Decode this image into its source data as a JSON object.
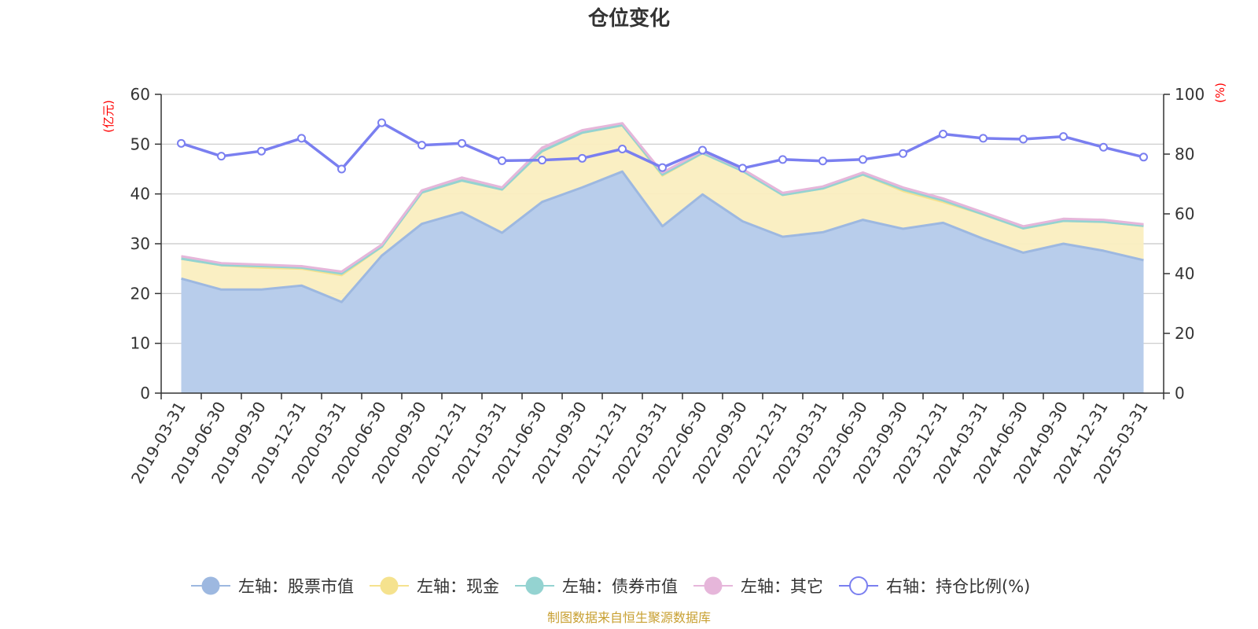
{
  "chart_data": {
    "type": "area",
    "title": "仓位变化",
    "left_unit": "(亿元)",
    "right_unit": "(%)",
    "x": [
      "2019-03-31",
      "2019-06-30",
      "2019-09-30",
      "2019-12-31",
      "2020-03-31",
      "2020-06-30",
      "2020-09-30",
      "2020-12-31",
      "2021-03-31",
      "2021-06-30",
      "2021-09-30",
      "2021-12-31",
      "2022-03-31",
      "2022-06-30",
      "2022-09-30",
      "2022-12-31",
      "2023-03-31",
      "2023-06-30",
      "2023-09-30",
      "2023-12-31",
      "2024-03-31",
      "2024-06-30",
      "2024-09-30",
      "2024-12-31",
      "2025-03-31"
    ],
    "y_left": {
      "min": 0,
      "max": 60,
      "ticks": [
        0,
        10,
        20,
        30,
        40,
        50,
        60
      ]
    },
    "y_right": {
      "min": 0,
      "max": 100,
      "ticks": [
        0,
        20,
        40,
        60,
        80,
        100
      ]
    },
    "grid": true,
    "legend_position": "bottom",
    "series": [
      {
        "name": "左轴：股票市值",
        "axis": "left",
        "stack": true,
        "color": "#9db8e0",
        "fill": "#b8cdeb",
        "values": [
          23.0,
          20.8,
          20.8,
          21.6,
          18.3,
          27.6,
          34.0,
          36.3,
          32.2,
          38.4,
          41.3,
          44.5,
          33.5,
          39.9,
          34.5,
          31.4,
          32.3,
          34.8,
          33.0,
          34.2,
          31.0,
          28.2,
          30.0,
          28.6,
          26.7
        ]
      },
      {
        "name": "左轴：现金",
        "axis": "left",
        "stack": true,
        "color": "#f5e28e",
        "fill": "#faeec0",
        "values": [
          4.0,
          4.9,
          4.4,
          3.4,
          5.4,
          1.8,
          6.3,
          6.4,
          8.7,
          10.2,
          11.0,
          9.3,
          10.2,
          8.3,
          10.1,
          8.4,
          8.8,
          9.1,
          7.6,
          4.2,
          4.9,
          4.9,
          4.6,
          5.8,
          6.9
        ]
      },
      {
        "name": "左轴：债券市值",
        "axis": "left",
        "stack": true,
        "color": "#94d3d1",
        "fill": "#94d3d1",
        "values": [
          0,
          0,
          0.3,
          0.2,
          0.3,
          0,
          0,
          0,
          0,
          0,
          0,
          0,
          0.2,
          0,
          0,
          0,
          0,
          0,
          0.3,
          0.3,
          0,
          0,
          0,
          0,
          0
        ]
      },
      {
        "name": "左轴：其它",
        "axis": "left",
        "stack": true,
        "color": "#e6b6da",
        "fill": "#e6b6da",
        "values": [
          0.5,
          0.4,
          0.3,
          0.3,
          0.4,
          0.4,
          0.4,
          0.6,
          0.4,
          0.7,
          0.5,
          0.4,
          0.4,
          0.4,
          0.4,
          0.4,
          0.4,
          0.4,
          0.4,
          0.4,
          0.4,
          0.4,
          0.4,
          0.4,
          0.3
        ]
      },
      {
        "name": "右轴：持仓比例(%)",
        "axis": "right",
        "stack": false,
        "color": "#7a7ff0",
        "values": [
          83.6,
          79.3,
          81.0,
          85.3,
          75.0,
          90.5,
          83.0,
          83.6,
          77.8,
          78.0,
          78.6,
          81.7,
          75.5,
          81.3,
          75.3,
          78.2,
          77.7,
          78.2,
          80.2,
          86.7,
          85.3,
          85.0,
          85.9,
          82.3,
          79.0
        ]
      }
    ],
    "source": "制图数据来自恒生聚源数据库"
  }
}
